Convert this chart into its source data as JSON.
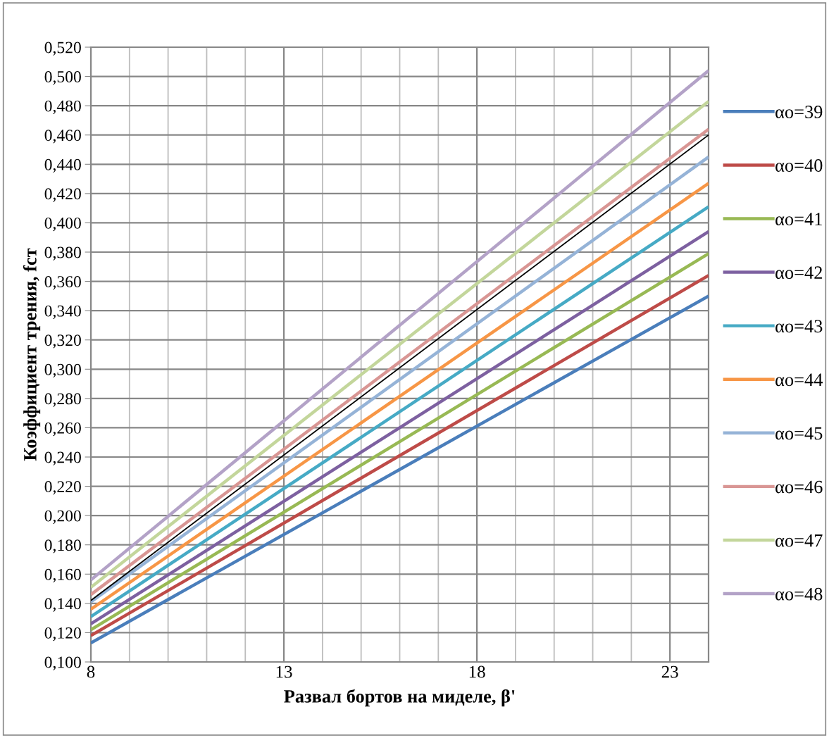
{
  "chart_data": {
    "type": "line",
    "xlabel": "Развал бортов на миделе, β'",
    "ylabel": "Коэффициент трения, fст",
    "x": [
      8,
      24
    ],
    "series": [
      {
        "name": "αо=39",
        "color": "#4a7ebb",
        "values": [
          0.113,
          0.35
        ]
      },
      {
        "name": "αо=40",
        "color": "#be4b48",
        "values": [
          0.118,
          0.364
        ]
      },
      {
        "name": "αо=41",
        "color": "#98b954",
        "values": [
          0.122,
          0.379
        ]
      },
      {
        "name": "αо=42",
        "color": "#7d60a0",
        "values": [
          0.126,
          0.394
        ]
      },
      {
        "name": "αо=43",
        "color": "#46aac5",
        "values": [
          0.131,
          0.411
        ]
      },
      {
        "name": "αо=44",
        "color": "#f79646",
        "values": [
          0.136,
          0.427
        ]
      },
      {
        "name": "αо=45",
        "color": "#95b3d7",
        "values": [
          0.141,
          0.445
        ]
      },
      {
        "name": "αо=46",
        "color": "#d99694",
        "values": [
          0.146,
          0.464
        ]
      },
      {
        "name": "αо=47",
        "color": "#c3d69b",
        "values": [
          0.151,
          0.483
        ]
      },
      {
        "name": "αо=48",
        "color": "#b3a2c7",
        "values": [
          0.156,
          0.504
        ]
      },
      {
        "color": "#000000",
        "values": [
          0.142,
          0.46
        ]
      }
    ],
    "xlim": [
      8,
      24
    ],
    "xticks": [
      8,
      {
        "value": 9,
        "label": null
      },
      {
        "value": 10,
        "label": null
      },
      {
        "value": 11,
        "label": null
      },
      {
        "value": 12,
        "label": null
      },
      13,
      {
        "value": 14,
        "label": null
      },
      {
        "value": 15,
        "label": null
      },
      {
        "value": 16,
        "label": null
      },
      {
        "value": 17,
        "label": null
      },
      18,
      {
        "value": 19,
        "label": null
      },
      {
        "value": 20,
        "label": null
      },
      {
        "value": 21,
        "label": null
      },
      {
        "value": 22,
        "label": null
      },
      23
    ],
    "ylim": [
      0.1,
      0.52
    ],
    "yticks": [
      {
        "value": 0.1,
        "label": "0,100"
      },
      {
        "value": 0.12,
        "label": "0,120"
      },
      {
        "value": 0.14,
        "label": "0,140"
      },
      {
        "value": 0.16,
        "label": "0,160"
      },
      {
        "value": 0.18,
        "label": "0,180"
      },
      {
        "value": 0.2,
        "label": "0,200"
      },
      {
        "value": 0.22,
        "label": "0,220"
      },
      {
        "value": 0.24,
        "label": "0,240"
      },
      {
        "value": 0.26,
        "label": "0,260"
      },
      {
        "value": 0.28,
        "label": "0,280"
      },
      {
        "value": 0.3,
        "label": "0,300"
      },
      {
        "value": 0.32,
        "label": "0,320"
      },
      {
        "value": 0.34,
        "label": "0,340"
      },
      {
        "value": 0.36,
        "label": "0,360"
      },
      {
        "value": 0.38,
        "label": "0,380"
      },
      {
        "value": 0.4,
        "label": "0,400"
      },
      {
        "value": 0.42,
        "label": "0,420"
      },
      {
        "value": 0.44,
        "label": "0,440"
      },
      {
        "value": 0.46,
        "label": "0,460"
      },
      {
        "value": 0.48,
        "label": "0,480"
      },
      {
        "value": 0.5,
        "label": "0,500"
      },
      {
        "value": 0.52,
        "label": "0,520"
      }
    ],
    "grid": true,
    "legend": "right",
    "marker": "none",
    "line_style": "solid"
  }
}
